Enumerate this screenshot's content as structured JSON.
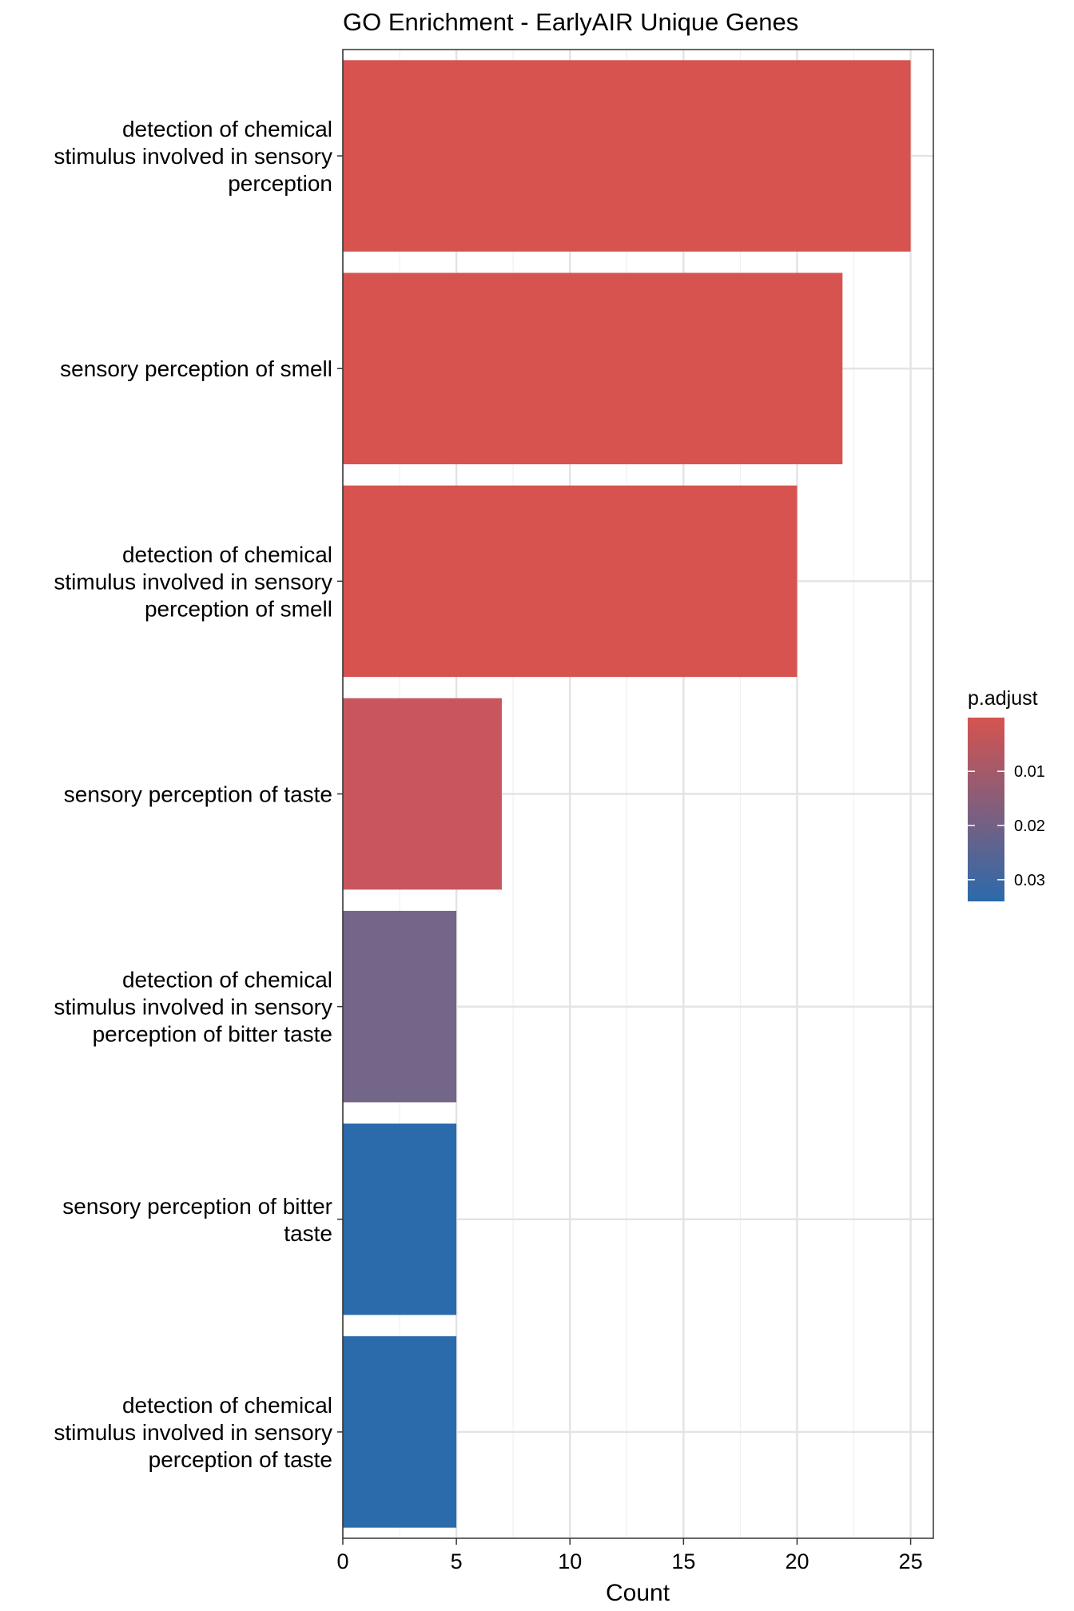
{
  "chart_data": {
    "type": "bar",
    "orientation": "horizontal",
    "title": "GO Enrichment - EarlyAIR Unique Genes",
    "xlabel": "Count",
    "ylabel": "",
    "xlim": [
      0,
      26
    ],
    "xticks": [
      0,
      5,
      10,
      15,
      20,
      25
    ],
    "grid": true,
    "categories": [
      {
        "lines": [
          "detection of chemical",
          "stimulus involved in sensory",
          "perception"
        ],
        "value": 25,
        "p_adjust": 0.0001,
        "color": "#d6534f"
      },
      {
        "lines": [
          "sensory perception of smell"
        ],
        "value": 22,
        "p_adjust": 0.0001,
        "color": "#d6534f"
      },
      {
        "lines": [
          "detection of chemical",
          "stimulus involved in sensory",
          "perception of smell"
        ],
        "value": 20,
        "p_adjust": 0.0002,
        "color": "#d6534f"
      },
      {
        "lines": [
          "sensory perception of taste"
        ],
        "value": 7,
        "p_adjust": 0.006,
        "color": "#c9565e"
      },
      {
        "lines": [
          "detection of chemical",
          "stimulus involved in sensory",
          "perception of bitter taste"
        ],
        "value": 5,
        "p_adjust": 0.021,
        "color": "#736689"
      },
      {
        "lines": [
          "sensory perception of bitter",
          "taste"
        ],
        "value": 5,
        "p_adjust": 0.034,
        "color": "#2b6aab"
      },
      {
        "lines": [
          "detection of chemical",
          "stimulus involved in sensory",
          "perception of taste"
        ],
        "value": 5,
        "p_adjust": 0.034,
        "color": "#2b6aab"
      }
    ],
    "legend": {
      "title": "p.adjust",
      "position": "right",
      "range": [
        0.0001,
        0.034
      ],
      "ticks": [
        {
          "label": "0.01",
          "value": 0.01
        },
        {
          "label": "0.02",
          "value": 0.02
        },
        {
          "label": "0.03",
          "value": 0.03
        }
      ],
      "color_low": "#d6534f",
      "color_high": "#2b6aab"
    }
  }
}
